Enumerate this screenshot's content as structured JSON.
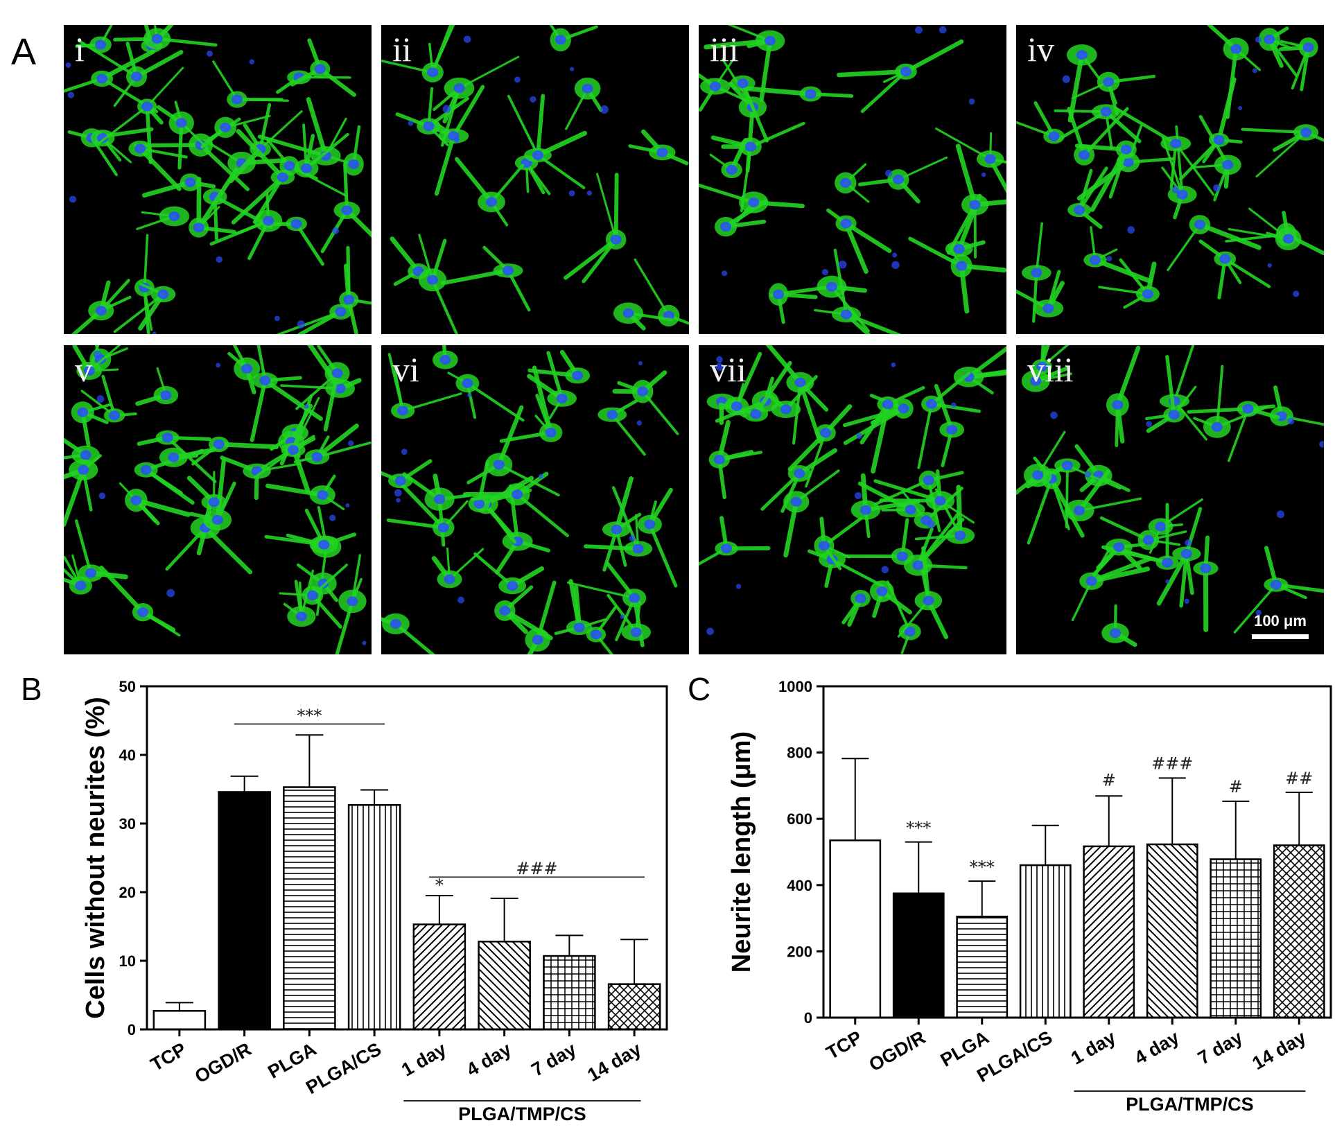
{
  "panelA": {
    "letter": "A",
    "images": [
      {
        "label": "i"
      },
      {
        "label": "ii"
      },
      {
        "label": "iii"
      },
      {
        "label": "iv"
      },
      {
        "label": "v"
      },
      {
        "label": "vi"
      },
      {
        "label": "vii"
      },
      {
        "label": "viii"
      }
    ],
    "scalebar_label": "100 μm",
    "colors": {
      "cytoskeleton": "#22d422",
      "nuclei": "#2a4cff",
      "background": "#000000"
    }
  },
  "chart_data": [
    {
      "panel": "B",
      "type": "bar",
      "ylabel": "Cells without neurites (%)",
      "ylim": [
        0,
        50
      ],
      "yticks": [
        0,
        10,
        20,
        30,
        40,
        50
      ],
      "categories": [
        "TCP",
        "OGD/R",
        "PLGA",
        "PLGA/CS",
        "1 day",
        "4 day",
        "7 day",
        "14 day"
      ],
      "values": [
        2.7,
        34.6,
        35.3,
        32.7,
        15.3,
        12.8,
        10.7,
        6.6
      ],
      "errors": [
        1.2,
        2.3,
        7.6,
        2.2,
        4.2,
        6.3,
        3.0,
        6.5
      ],
      "patterns": [
        "white",
        "black",
        "hlines",
        "vlines",
        "diag-right",
        "diag-left",
        "grid",
        "crosshatch"
      ],
      "group_label": "PLGA/TMP/CS",
      "group_categories": [
        "1 day",
        "4 day",
        "7 day",
        "14 day"
      ],
      "annotations": [
        {
          "text": "***",
          "type": "bracket",
          "from": "OGD/R",
          "to": "PLGA/CS",
          "y": 44.5
        },
        {
          "text": "*",
          "type": "bar",
          "category": "1 day",
          "y": 20.2
        },
        {
          "text": "###",
          "type": "bracket",
          "from": "1 day",
          "to": "14 day",
          "y": 22.2
        }
      ]
    },
    {
      "panel": "C",
      "type": "bar",
      "ylabel": "Neurite length (μm)",
      "ylim": [
        0,
        1000
      ],
      "yticks": [
        0,
        200,
        400,
        600,
        800,
        1000
      ],
      "categories": [
        "TCP",
        "OGD/R",
        "PLGA",
        "PLGA/CS",
        "1 day",
        "4 day",
        "7 day",
        "14 day"
      ],
      "values": [
        535,
        375,
        305,
        460,
        517,
        523,
        478,
        520
      ],
      "errors": [
        247,
        155,
        107,
        120,
        152,
        200,
        175,
        160
      ],
      "patterns": [
        "white",
        "black",
        "hlines",
        "vlines",
        "diag-right",
        "diag-left",
        "grid",
        "crosshatch"
      ],
      "group_label": "PLGA/TMP/CS",
      "group_categories": [
        "1 day",
        "4 day",
        "7 day",
        "14 day"
      ],
      "annotations": [
        {
          "text": "***",
          "type": "bar",
          "category": "OGD/R",
          "y": 555
        },
        {
          "text": "***",
          "type": "bar",
          "category": "PLGA",
          "y": 437
        },
        {
          "text": "#",
          "type": "bar",
          "category": "1 day",
          "y": 700
        },
        {
          "text": "###",
          "type": "bar",
          "category": "4 day",
          "y": 750
        },
        {
          "text": "#",
          "type": "bar",
          "category": "7 day",
          "y": 680
        },
        {
          "text": "##",
          "type": "bar",
          "category": "14 day",
          "y": 705
        }
      ]
    }
  ]
}
